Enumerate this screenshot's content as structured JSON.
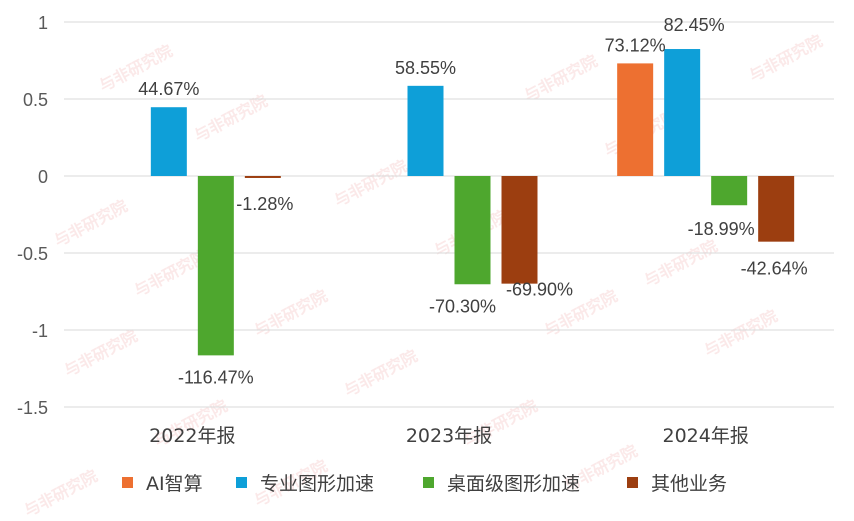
{
  "watermark": {
    "text": "与非研究院"
  },
  "chart_data": {
    "type": "bar",
    "categories": [
      "2022年报",
      "2023年报",
      "2024年报"
    ],
    "series": [
      {
        "name": "AI智算",
        "color": "#ED7031",
        "values": [
          null,
          null,
          0.7312
        ],
        "labels": [
          "",
          "",
          "73.12%"
        ]
      },
      {
        "name": "专业图形加速",
        "color": "#0E9FD8",
        "values": [
          0.4467,
          0.5855,
          0.8245
        ],
        "labels": [
          "44.67%",
          "58.55%",
          "82.45%"
        ]
      },
      {
        "name": "桌面级图形加速",
        "color": "#4EA72E",
        "values": [
          -1.1647,
          -0.703,
          -0.1899
        ],
        "labels": [
          "-116.47%",
          "-70.30%",
          "-18.99%"
        ]
      },
      {
        "name": "其他业务",
        "color": "#9C3E10",
        "values": [
          -0.0128,
          -0.699,
          -0.4264
        ],
        "labels": [
          "-1.28%",
          "-69.90%",
          "-42.64%"
        ]
      }
    ],
    "yticks": [
      1,
      0.5,
      0,
      -0.5,
      -1,
      -1.5
    ],
    "ytick_labels": [
      "1",
      "0.5",
      "0",
      "-0.5",
      "-1",
      "-1.5"
    ],
    "ylim": [
      -1.5,
      1
    ],
    "grid": true,
    "legend": "bottom"
  }
}
